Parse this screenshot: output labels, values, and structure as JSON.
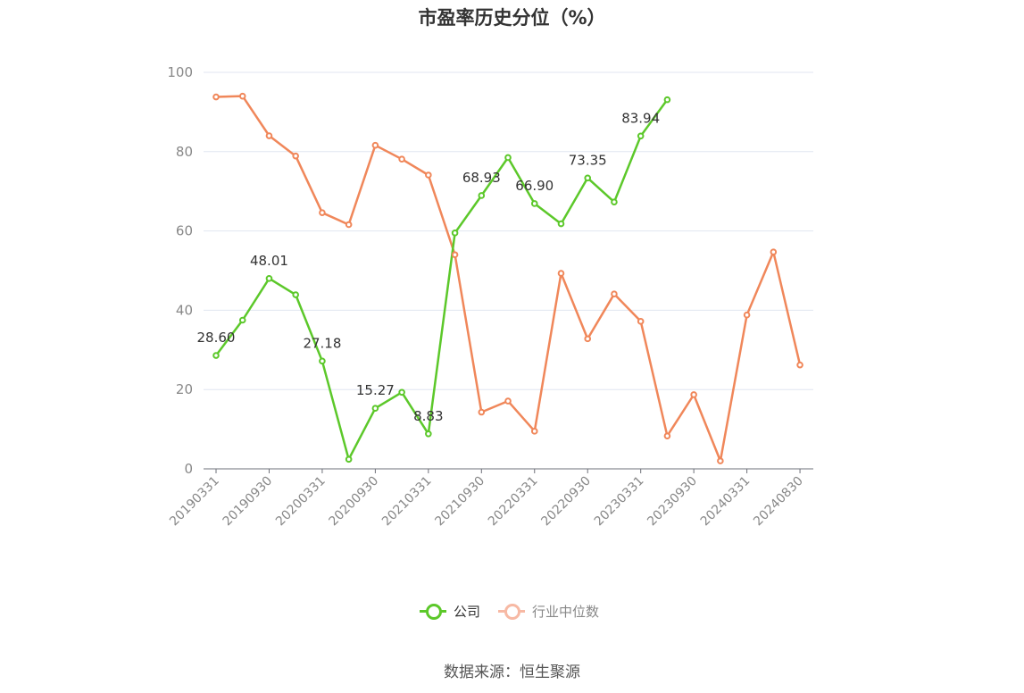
{
  "chart_data": {
    "type": "line",
    "title": "市盈率历史分位（%）",
    "xlabel": "",
    "ylabel": "",
    "ylim": [
      0,
      100
    ],
    "yticks": [
      0,
      20,
      40,
      60,
      80,
      100
    ],
    "x": [
      "20190331",
      "20190630",
      "20190930",
      "20191231",
      "20200331",
      "20200630",
      "20200930",
      "20201231",
      "20210331",
      "20210630",
      "20210930",
      "20211231",
      "20220331",
      "20220630",
      "20220930",
      "20221231",
      "20230331",
      "20230630",
      "20230930",
      "20231231",
      "20240331",
      "20240630",
      "20240830"
    ],
    "x_tick_labels": [
      "20190331",
      "20190930",
      "20200331",
      "20200930",
      "20210331",
      "20210930",
      "20220331",
      "20220930",
      "20230331",
      "20230930",
      "20240331",
      "20240830"
    ],
    "grid": true,
    "legend_position": "bottom-center",
    "series": [
      {
        "name": "公司",
        "color": "#5cc82a",
        "values": [
          28.6,
          37.5,
          48.01,
          43.9,
          27.18,
          2.4,
          15.27,
          19.3,
          8.83,
          59.5,
          68.93,
          78.5,
          66.9,
          61.8,
          73.35,
          67.3,
          83.94,
          93.1,
          null,
          null,
          null,
          null,
          null
        ],
        "labels": {
          "0": "28.60",
          "2": "48.01",
          "4": "27.18",
          "6": "15.27",
          "8": "8.83",
          "10": "68.93",
          "12": "66.90",
          "14": "73.35",
          "16": "83.94"
        }
      },
      {
        "name": "行业中位数",
        "color": "#f0875a",
        "legend_color": "#f7b9a4",
        "values": [
          93.8,
          94.0,
          84.0,
          78.9,
          64.6,
          61.6,
          81.6,
          78.1,
          74.1,
          54.0,
          14.3,
          17.1,
          9.5,
          49.3,
          32.8,
          44.1,
          37.2,
          8.3,
          18.7,
          2.0,
          38.8,
          54.7,
          26.2
        ]
      }
    ]
  },
  "footer": {
    "source": "数据来源：恒生聚源"
  }
}
